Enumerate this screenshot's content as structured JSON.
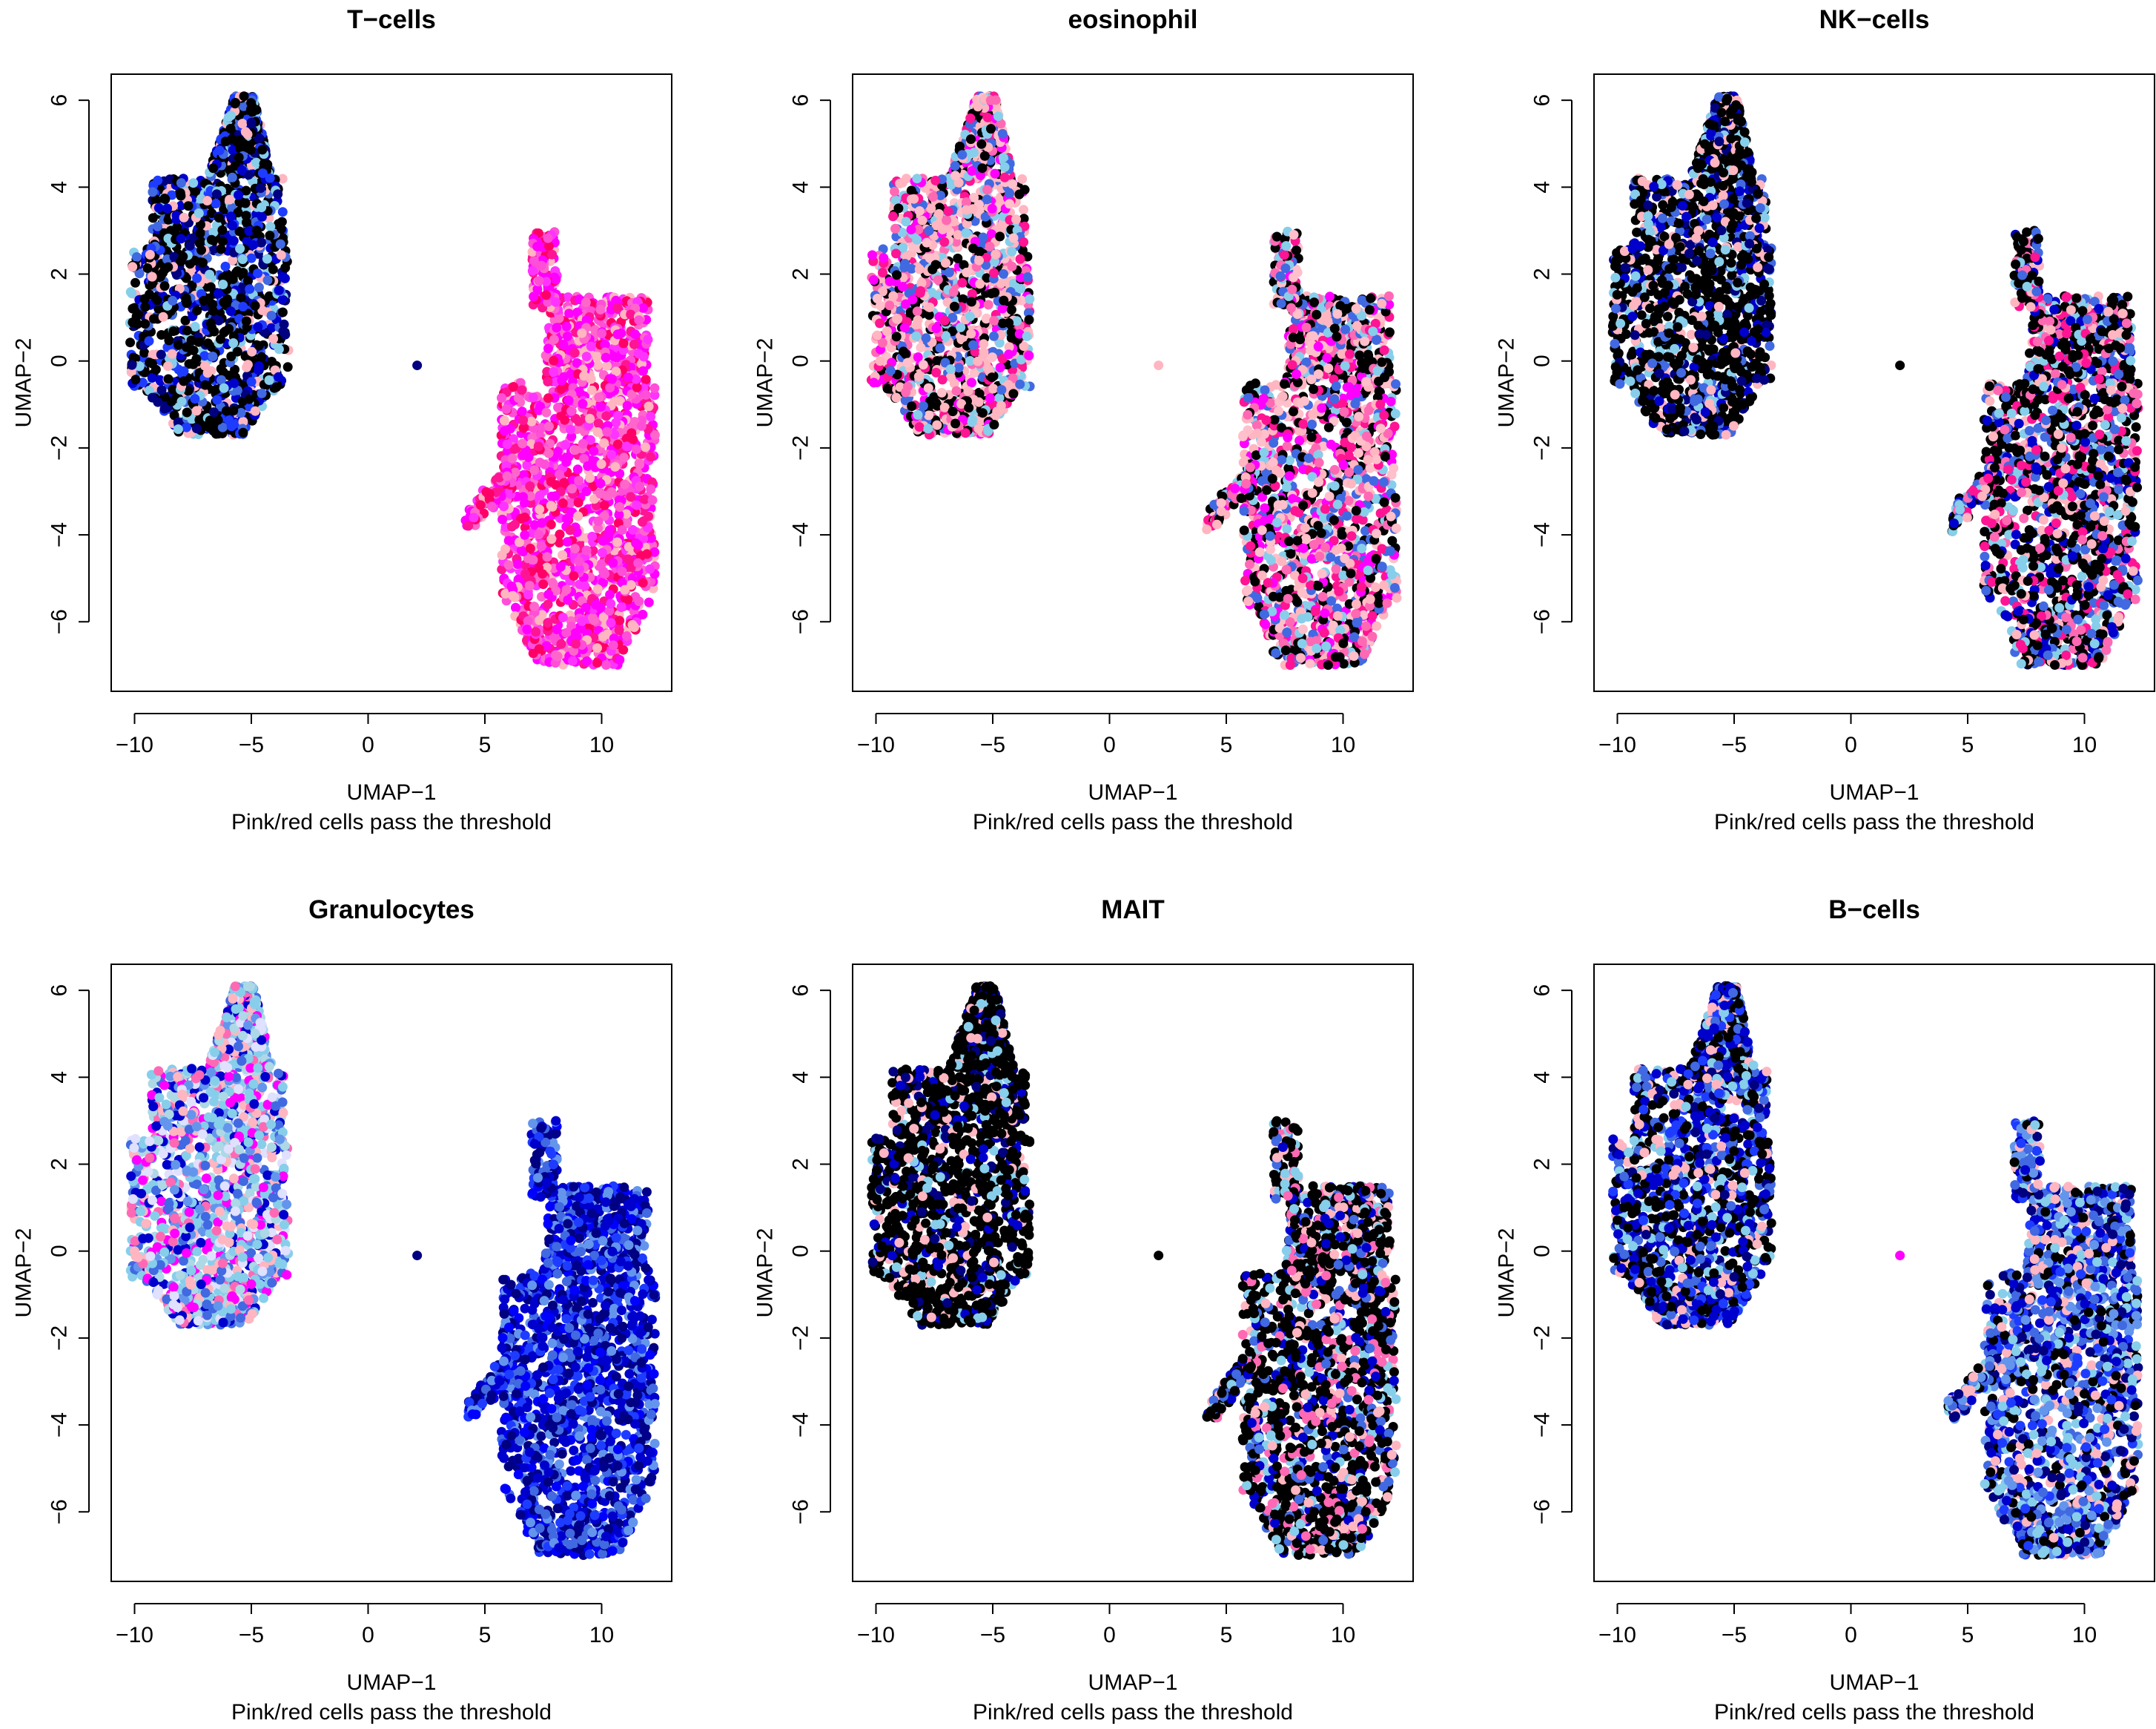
{
  "chart_data": [
    {
      "type": "scatter",
      "title": "T−cells",
      "xlabel": "UMAP−1",
      "ylabel": "UMAP−2",
      "subtitle": "Pink/red cells pass the threshold",
      "xlim": [
        -11,
        13
      ],
      "ylim": [
        -7.6,
        6.6
      ],
      "xticks": [
        -10,
        -5,
        0,
        5,
        10
      ],
      "yticks": [
        -6,
        -4,
        -2,
        0,
        2,
        4,
        6
      ],
      "xtick_labels": [
        "−10",
        "−5",
        "0",
        "5",
        "10"
      ],
      "ytick_labels": [
        "−6",
        "−4",
        "−2",
        "0",
        "2",
        "4",
        "6"
      ],
      "grid": false,
      "left_cluster_colors": [
        "#000000",
        "#000000",
        "#000000",
        "#000000",
        "#000080",
        "#0000cd",
        "#1e3cff",
        "#4169e1",
        "#87ceeb",
        "#ffb6c1"
      ],
      "right_cluster_colors": [
        "#ff00ff",
        "#ff00ff",
        "#ff33ff",
        "#ff66cc",
        "#ff1493",
        "#ff4fd8",
        "#ffb6c1",
        "#ff0066"
      ],
      "singleton": {
        "x": 2.1,
        "y": -0.1,
        "color": "#000080"
      }
    },
    {
      "type": "scatter",
      "title": "eosinophil",
      "xlabel": "UMAP−1",
      "ylabel": "UMAP−2",
      "subtitle": "Pink/red cells pass the threshold",
      "xlim": [
        -11,
        13
      ],
      "ylim": [
        -7.6,
        6.6
      ],
      "xticks": [
        -10,
        -5,
        0,
        5,
        10
      ],
      "yticks": [
        -6,
        -4,
        -2,
        0,
        2,
        4,
        6
      ],
      "xtick_labels": [
        "−10",
        "−5",
        "0",
        "5",
        "10"
      ],
      "ytick_labels": [
        "−6",
        "−4",
        "−2",
        "0",
        "2",
        "4",
        "6"
      ],
      "grid": false,
      "left_cluster_colors": [
        "#ffb6c1",
        "#ffb6c1",
        "#ffc0cb",
        "#000000",
        "#000000",
        "#ff69b4",
        "#ff00ff",
        "#4169e1",
        "#87ceeb",
        "#ff1493"
      ],
      "right_cluster_colors": [
        "#000000",
        "#000000",
        "#ffb6c1",
        "#ffc0cb",
        "#ff00ff",
        "#ff69b4",
        "#4169e1",
        "#87ceeb",
        "#ff1493"
      ],
      "singleton": {
        "x": 2.1,
        "y": -0.1,
        "color": "#ffb6c1"
      }
    },
    {
      "type": "scatter",
      "title": "NK−cells",
      "xlabel": "UMAP−1",
      "ylabel": "UMAP−2",
      "subtitle": "Pink/red cells pass the threshold",
      "xlim": [
        -11,
        13
      ],
      "ylim": [
        -7.6,
        6.6
      ],
      "xticks": [
        -10,
        -5,
        0,
        5,
        10
      ],
      "yticks": [
        -6,
        -4,
        -2,
        0,
        2,
        4,
        6
      ],
      "xtick_labels": [
        "−10",
        "−5",
        "0",
        "5",
        "10"
      ],
      "ytick_labels": [
        "−6",
        "−4",
        "−2",
        "0",
        "2",
        "4",
        "6"
      ],
      "grid": false,
      "left_cluster_colors": [
        "#000000",
        "#000000",
        "#000000",
        "#000000",
        "#000000",
        "#000000",
        "#000080",
        "#0000cd",
        "#4169e1",
        "#87ceeb",
        "#ffb6c1"
      ],
      "right_cluster_colors": [
        "#000000",
        "#000000",
        "#000000",
        "#000000",
        "#0000cd",
        "#4169e1",
        "#ffb6c1",
        "#ff69b4",
        "#ff1493",
        "#87ceeb"
      ],
      "singleton": {
        "x": 2.1,
        "y": -0.1,
        "color": "#000000"
      }
    },
    {
      "type": "scatter",
      "title": "Granulocytes",
      "xlabel": "UMAP−1",
      "ylabel": "UMAP−2",
      "subtitle": "Pink/red cells pass the threshold",
      "xlim": [
        -11,
        13
      ],
      "ylim": [
        -7.6,
        6.6
      ],
      "xticks": [
        -10,
        -5,
        0,
        5,
        10
      ],
      "yticks": [
        -6,
        -4,
        -2,
        0,
        2,
        4,
        6
      ],
      "xtick_labels": [
        "−10",
        "−5",
        "0",
        "5",
        "10"
      ],
      "ytick_labels": [
        "−6",
        "−4",
        "−2",
        "0",
        "2",
        "4",
        "6"
      ],
      "grid": false,
      "left_cluster_colors": [
        "#87ceeb",
        "#87ceeb",
        "#add8e6",
        "#6495ed",
        "#4169e1",
        "#ffb6c1",
        "#ff69b4",
        "#ff00ff",
        "#0000cd",
        "#e0e0ff"
      ],
      "right_cluster_colors": [
        "#0000cd",
        "#0000cd",
        "#0000ff",
        "#1e3cff",
        "#00008b",
        "#4169e1",
        "#6495ed",
        "#000080"
      ],
      "singleton": {
        "x": 2.1,
        "y": -0.1,
        "color": "#000080"
      }
    },
    {
      "type": "scatter",
      "title": "MAIT",
      "xlabel": "UMAP−1",
      "ylabel": "UMAP−2",
      "subtitle": "Pink/red cells pass the threshold",
      "xlim": [
        -11,
        13
      ],
      "ylim": [
        -7.6,
        6.6
      ],
      "xticks": [
        -10,
        -5,
        0,
        5,
        10
      ],
      "yticks": [
        -6,
        -4,
        -2,
        0,
        2,
        4,
        6
      ],
      "xtick_labels": [
        "−10",
        "−5",
        "0",
        "5",
        "10"
      ],
      "ytick_labels": [
        "−6",
        "−4",
        "−2",
        "0",
        "2",
        "4",
        "6"
      ],
      "grid": false,
      "left_cluster_colors": [
        "#000000",
        "#000000",
        "#000000",
        "#000000",
        "#000000",
        "#000000",
        "#000000",
        "#000080",
        "#0000cd",
        "#87ceeb",
        "#ffb6c1"
      ],
      "right_cluster_colors": [
        "#000000",
        "#000000",
        "#000000",
        "#000000",
        "#000000",
        "#ffb6c1",
        "#ff69b4",
        "#0000cd",
        "#4169e1",
        "#87ceeb"
      ],
      "singleton": {
        "x": 2.1,
        "y": -0.1,
        "color": "#000000"
      }
    },
    {
      "type": "scatter",
      "title": "B−cells",
      "xlabel": "UMAP−1",
      "ylabel": "UMAP−2",
      "subtitle": "Pink/red cells pass the threshold",
      "xlim": [
        -11,
        13
      ],
      "ylim": [
        -7.6,
        6.6
      ],
      "xticks": [
        -10,
        -5,
        0,
        5,
        10
      ],
      "yticks": [
        -6,
        -4,
        -2,
        0,
        2,
        4,
        6
      ],
      "xtick_labels": [
        "−10",
        "−5",
        "0",
        "5",
        "10"
      ],
      "ytick_labels": [
        "−6",
        "−4",
        "−2",
        "0",
        "2",
        "4",
        "6"
      ],
      "grid": false,
      "left_cluster_colors": [
        "#000000",
        "#000000",
        "#000000",
        "#000080",
        "#0000cd",
        "#0000cd",
        "#1e3cff",
        "#4169e1",
        "#87ceeb",
        "#ffb6c1"
      ],
      "right_cluster_colors": [
        "#0000cd",
        "#000080",
        "#000000",
        "#1e3cff",
        "#4169e1",
        "#6495ed",
        "#87ceeb",
        "#ffb6c1"
      ],
      "singleton": {
        "x": 2.1,
        "y": -0.1,
        "color": "#ff00ff"
      }
    }
  ]
}
